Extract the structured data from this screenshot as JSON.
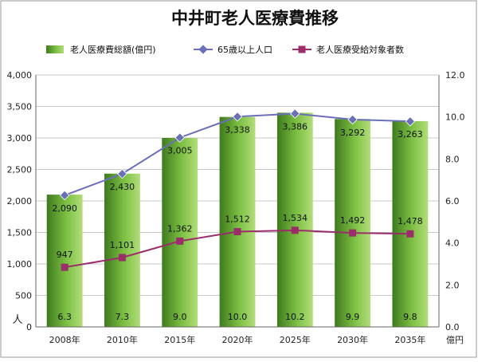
{
  "chart_data": {
    "type": "bar",
    "title": "中井町老人医療費推移",
    "categories": [
      "2008年",
      "2010年",
      "2015年",
      "2020年",
      "2025年",
      "2030年",
      "2035年"
    ],
    "series": [
      {
        "name": "老人医療費総額(億円)",
        "type": "bar",
        "axis": "right",
        "values": [
          6.3,
          7.3,
          9.0,
          10.0,
          10.2,
          9.9,
          9.8
        ],
        "labels": [
          "6.3",
          "7.3",
          "9.0",
          "10.0",
          "10.2",
          "9.9",
          "9.8"
        ],
        "color": "#6fb43c"
      },
      {
        "name": "65歳以上人口",
        "type": "line",
        "axis": "left",
        "values": [
          2090,
          2430,
          3005,
          3338,
          3386,
          3292,
          3263
        ],
        "labels": [
          "2,090",
          "2,430",
          "3,005",
          "3,338",
          "3,386",
          "3,292",
          "3,263"
        ],
        "color": "#6b6fb8"
      },
      {
        "name": "老人医療受給対象者数",
        "type": "line",
        "axis": "left",
        "values": [
          947,
          1101,
          1362,
          1512,
          1534,
          1492,
          1478
        ],
        "labels": [
          "947",
          "1,101",
          "1,362",
          "1,512",
          "1,534",
          "1,492",
          "1,478"
        ],
        "color": "#9b2d6a"
      }
    ],
    "y_left": {
      "label": "人",
      "ylim": [
        0,
        4000
      ],
      "ticks": [
        "0",
        "500",
        "1,000",
        "1,500",
        "2,000",
        "2,500",
        "3,000",
        "3,500",
        "4,000"
      ]
    },
    "y_right": {
      "label": "億円",
      "ylim": [
        0,
        12
      ],
      "ticks": [
        "0.0",
        "2.0",
        "4.0",
        "6.0",
        "8.0",
        "10.0",
        "12.0"
      ]
    },
    "grid": true,
    "legend": "top"
  }
}
